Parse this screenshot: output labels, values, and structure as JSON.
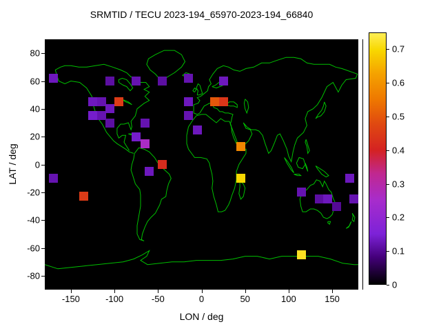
{
  "title": "SRMTID / TECU 2023-194_65970-2023-194_66840",
  "axes": {
    "xlabel": "LON / deg",
    "ylabel": "LAT / deg",
    "xticks": [
      -150,
      -100,
      -50,
      0,
      50,
      100,
      150
    ],
    "yticks": [
      80,
      60,
      40,
      20,
      0,
      -20,
      -40,
      -60,
      -80
    ],
    "xrange": [
      -180,
      180
    ],
    "yrange": [
      -90,
      90
    ]
  },
  "colorbar": {
    "ticks": [
      "0",
      "0.1",
      "0.2",
      "0.3",
      "0.4",
      "0.5",
      "0.6",
      "0.7"
    ],
    "tick_values": [
      0,
      0.1,
      0.2,
      0.3,
      0.4,
      0.5,
      0.6,
      0.7
    ],
    "range": [
      0,
      0.75
    ]
  },
  "colors": {
    "background": "#ffffff",
    "plot_background": "#000000",
    "coastline": "#00c000",
    "text": "#000000",
    "colormap_stops": [
      [
        0.0,
        "#000000"
      ],
      [
        0.08,
        "#44007a"
      ],
      [
        0.15,
        "#7d22d8"
      ],
      [
        0.25,
        "#a72ccc"
      ],
      [
        0.33,
        "#c02890"
      ],
      [
        0.4,
        "#d42222"
      ],
      [
        0.48,
        "#e04a10"
      ],
      [
        0.55,
        "#ee7700"
      ],
      [
        0.63,
        "#f5a300"
      ],
      [
        0.7,
        "#f8d800"
      ],
      [
        0.75,
        "#ffee55"
      ]
    ]
  },
  "chart_data": {
    "type": "heatmap",
    "title": "SRMTID / TECU 2023-194_65970-2023-194_66840",
    "xlabel": "LON / deg",
    "ylabel": "LAT / deg",
    "xlim": [
      -180,
      180
    ],
    "ylim": [
      -90,
      90
    ],
    "grid": false,
    "legend": "colorbar-right",
    "colorbar_range": [
      0,
      0.75
    ],
    "colorbar_ticks": [
      0,
      0.1,
      0.2,
      0.3,
      0.4,
      0.5,
      0.6,
      0.7
    ],
    "value_name": "TECU",
    "points": [
      {
        "lon": -170,
        "lat": 62,
        "tecu": 0.13
      },
      {
        "lon": -105,
        "lat": 60,
        "tecu": 0.11
      },
      {
        "lon": -75,
        "lat": 60,
        "tecu": 0.12
      },
      {
        "lon": -45,
        "lat": 60,
        "tecu": 0.11
      },
      {
        "lon": -15,
        "lat": 62,
        "tecu": 0.12
      },
      {
        "lon": 25,
        "lat": 60,
        "tecu": 0.13
      },
      {
        "lon": -125,
        "lat": 45,
        "tecu": 0.13
      },
      {
        "lon": -115,
        "lat": 45,
        "tecu": 0.12
      },
      {
        "lon": -95,
        "lat": 45,
        "tecu": 0.45
      },
      {
        "lon": -125,
        "lat": 35,
        "tecu": 0.14
      },
      {
        "lon": -115,
        "lat": 35,
        "tecu": 0.12
      },
      {
        "lon": -105,
        "lat": 40,
        "tecu": 0.13
      },
      {
        "lon": -105,
        "lat": 30,
        "tecu": 0.11
      },
      {
        "lon": -65,
        "lat": 30,
        "tecu": 0.12
      },
      {
        "lon": -75,
        "lat": 20,
        "tecu": 0.14
      },
      {
        "lon": -65,
        "lat": 15,
        "tecu": 0.26
      },
      {
        "lon": -15,
        "lat": 45,
        "tecu": 0.13
      },
      {
        "lon": 15,
        "lat": 45,
        "tecu": 0.5
      },
      {
        "lon": 25,
        "lat": 45,
        "tecu": 0.44
      },
      {
        "lon": -15,
        "lat": 35,
        "tecu": 0.12
      },
      {
        "lon": -5,
        "lat": 25,
        "tecu": 0.13
      },
      {
        "lon": 45,
        "lat": 13,
        "tecu": 0.58
      },
      {
        "lon": -45,
        "lat": 0,
        "tecu": 0.42
      },
      {
        "lon": -60,
        "lat": -5,
        "tecu": 0.13
      },
      {
        "lon": -170,
        "lat": -10,
        "tecu": 0.12
      },
      {
        "lon": 45,
        "lat": -10,
        "tecu": 0.7
      },
      {
        "lon": 170,
        "lat": -10,
        "tecu": 0.13
      },
      {
        "lon": -135,
        "lat": -23,
        "tecu": 0.45
      },
      {
        "lon": 115,
        "lat": -20,
        "tecu": 0.12
      },
      {
        "lon": 135,
        "lat": -25,
        "tecu": 0.11
      },
      {
        "lon": 145,
        "lat": -25,
        "tecu": 0.13
      },
      {
        "lon": 155,
        "lat": -30,
        "tecu": 0.1
      },
      {
        "lon": 175,
        "lat": -25,
        "tecu": 0.12
      },
      {
        "lon": 115,
        "lat": -65,
        "tecu": 0.72
      }
    ]
  }
}
